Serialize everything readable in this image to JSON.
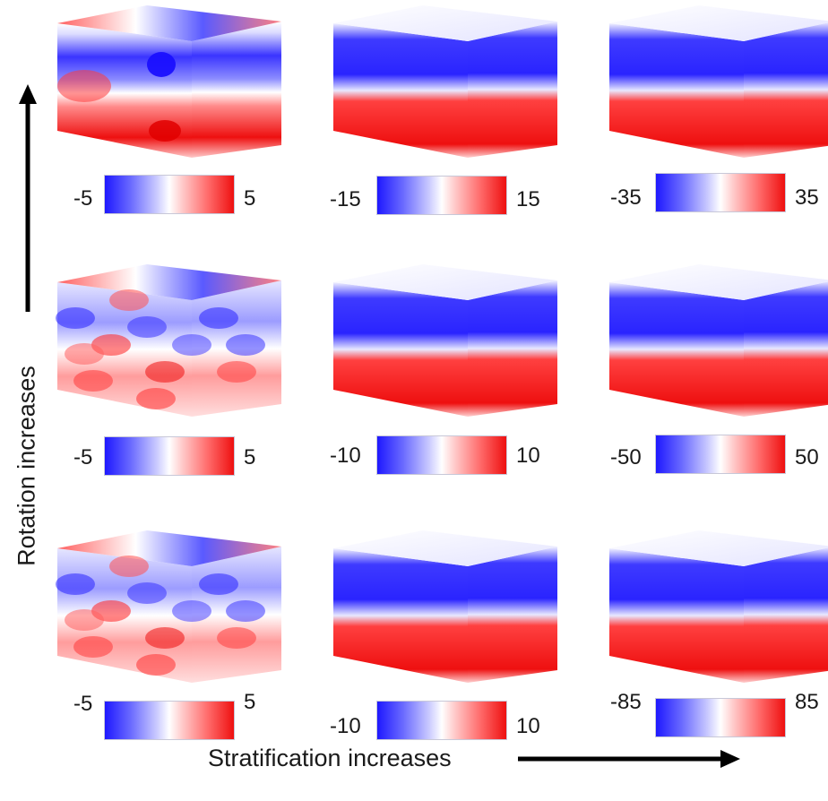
{
  "axes": {
    "y_label": "Rotation increases",
    "x_label": "Stratification increases"
  },
  "panels": [
    [
      {
        "scale_min": "-5",
        "scale_max": "5",
        "pattern": "large-scale vortices"
      },
      {
        "scale_min": "-15",
        "scale_max": "15",
        "pattern": "layered"
      },
      {
        "scale_min": "-35",
        "scale_max": "35",
        "pattern": "strongly layered"
      }
    ],
    [
      {
        "scale_min": "-5",
        "scale_max": "5",
        "pattern": "turbulent"
      },
      {
        "scale_min": "-10",
        "scale_max": "10",
        "pattern": "layered"
      },
      {
        "scale_min": "-50",
        "scale_max": "50",
        "pattern": "strongly layered"
      }
    ],
    [
      {
        "scale_min": "-5",
        "scale_max": "5",
        "pattern": "turbulent"
      },
      {
        "scale_min": "-10",
        "scale_max": "10",
        "pattern": "layered"
      },
      {
        "scale_min": "-85",
        "scale_max": "85",
        "pattern": "strongly layered"
      }
    ]
  ],
  "colors": {
    "negative": "#1e18ff",
    "neutral": "#ffffff",
    "positive": "#ee1010",
    "arrow": "#000000"
  }
}
